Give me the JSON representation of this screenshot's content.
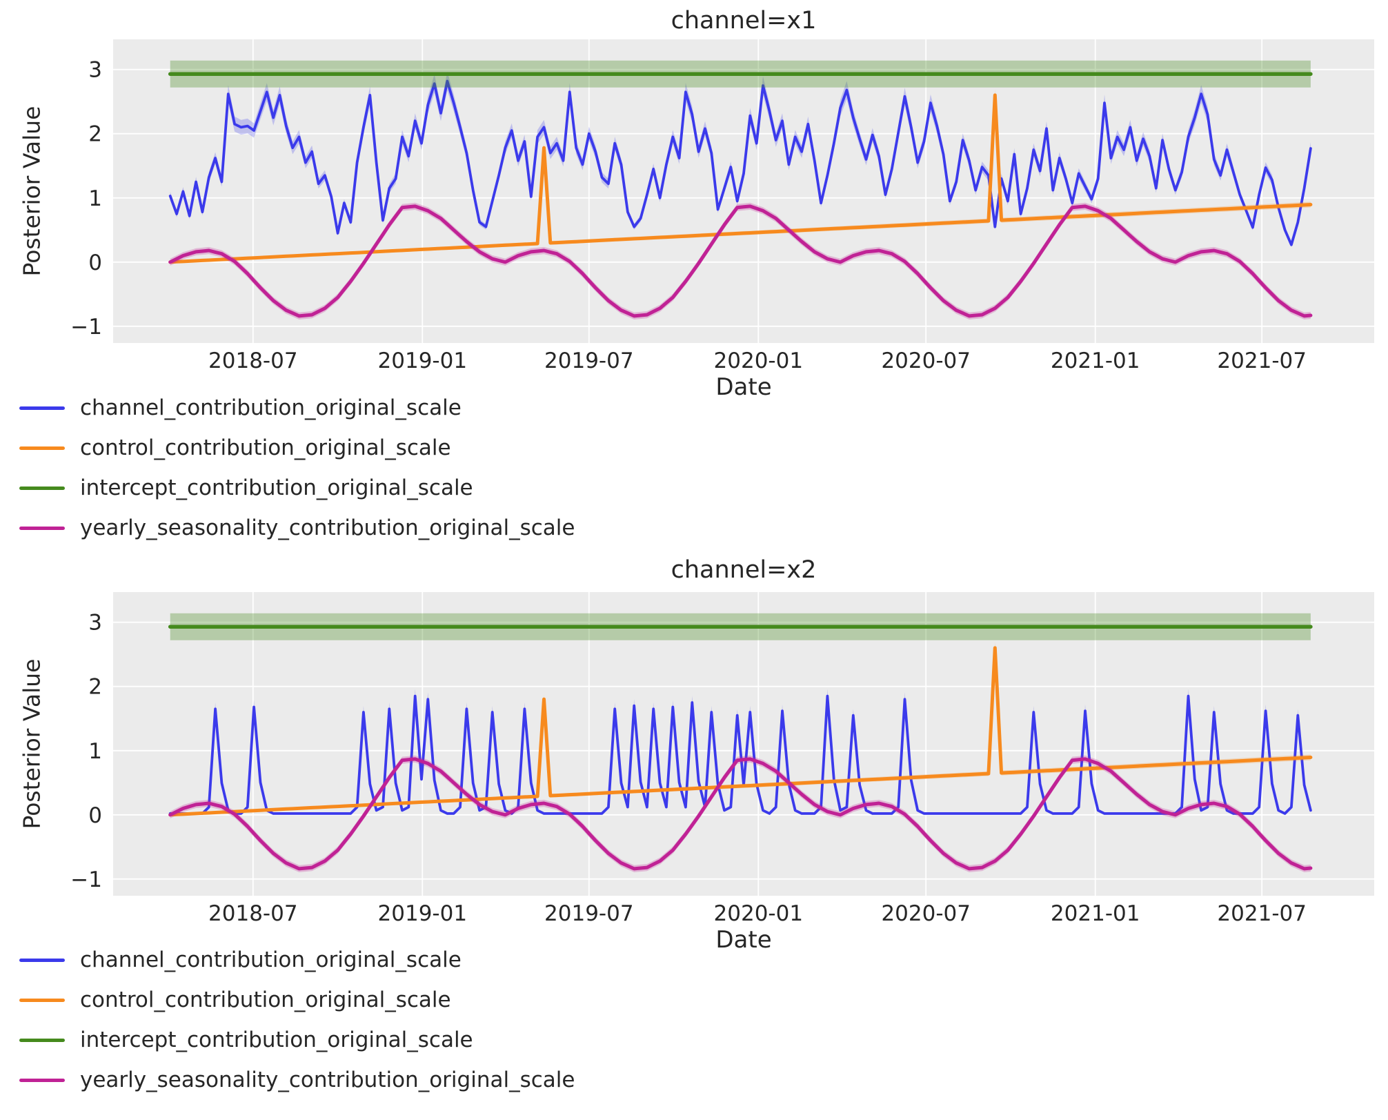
{
  "figure": {
    "subplots": [
      {
        "title": "channel=x1",
        "xlabel": "Date",
        "ylabel": "Posterior Value"
      },
      {
        "title": "channel=x2",
        "xlabel": "Date",
        "ylabel": "Posterior Value"
      }
    ],
    "legend_labels": [
      "channel_contribution_original_scale",
      "control_contribution_original_scale",
      "intercept_contribution_original_scale",
      "yearly_seasonality_contribution_original_scale"
    ]
  },
  "palette": {
    "channel": "#3b3aeb",
    "control": "#f78a1e",
    "intercept": "#458a1d",
    "seasonality": "#c02295",
    "axes_background": "#ebebeb",
    "grid": "#ffffff",
    "text": "#262626",
    "figure_background": "#ffffff"
  },
  "axes": {
    "xticklabels": [
      "2018-07",
      "2019-01",
      "2019-07",
      "2020-01",
      "2020-07",
      "2021-01",
      "2021-07"
    ],
    "xtick_dates": [
      "2018-07-01",
      "2019-01-01",
      "2019-07-01",
      "2020-01-01",
      "2020-07-01",
      "2021-01-01",
      "2021-07-01"
    ],
    "yticks": [
      3,
      2,
      1,
      0,
      -1
    ],
    "yticklabels": [
      "3",
      "2",
      "1",
      "0",
      "−1"
    ],
    "ylim": [
      -1.26,
      3.47
    ],
    "date_start": "2018-04-02",
    "date_end": "2021-08-30",
    "step_days": 7,
    "x_margin_days": 62,
    "grid": "on",
    "legend_position": "below-left"
  },
  "chart_data": [
    {
      "subplot": "channel=x1",
      "type": "line",
      "x_start": "2018-04-02",
      "x_step_days": 7,
      "n_weeks": 178,
      "series": [
        {
          "name": "channel_contribution_original_scale",
          "color_key": "channel",
          "kind": "weekly_values",
          "values": [
            1.03,
            0.75,
            1.1,
            0.72,
            1.25,
            0.78,
            1.32,
            1.62,
            1.25,
            2.62,
            2.15,
            2.1,
            2.12,
            2.05,
            2.35,
            2.65,
            2.25,
            2.6,
            2.12,
            1.78,
            1.95,
            1.55,
            1.72,
            1.22,
            1.35,
            1.02,
            0.45,
            0.92,
            0.62,
            1.55,
            2.1,
            2.6,
            1.55,
            0.65,
            1.15,
            1.3,
            1.95,
            1.65,
            2.2,
            1.85,
            2.45,
            2.78,
            2.32,
            2.82,
            2.48,
            2.1,
            1.7,
            1.12,
            0.62,
            0.55,
            0.95,
            1.35,
            1.78,
            2.05,
            1.58,
            1.88,
            1.02,
            1.95,
            2.1,
            1.7,
            1.85,
            1.58,
            2.65,
            1.78,
            1.52,
            2.0,
            1.72,
            1.32,
            1.22,
            1.85,
            1.52,
            0.78,
            0.55,
            0.68,
            1.05,
            1.45,
            1.0,
            1.52,
            1.95,
            1.62,
            2.65,
            2.3,
            1.72,
            2.08,
            1.7,
            0.82,
            1.15,
            1.48,
            0.95,
            1.38,
            2.28,
            1.85,
            2.75,
            2.35,
            1.9,
            2.2,
            1.52,
            1.95,
            1.72,
            2.15,
            1.58,
            0.92,
            1.35,
            1.85,
            2.4,
            2.68,
            2.25,
            1.92,
            1.6,
            1.98,
            1.65,
            1.05,
            1.45,
            2.02,
            2.58,
            2.1,
            1.55,
            1.88,
            2.48,
            2.12,
            1.68,
            0.95,
            1.25,
            1.9,
            1.58,
            1.12,
            1.48,
            1.35,
            0.55,
            1.3,
            0.95,
            1.68,
            0.75,
            1.15,
            1.75,
            1.42,
            2.08,
            1.12,
            1.62,
            1.3,
            0.92,
            1.38,
            1.18,
            0.98,
            1.3,
            2.48,
            1.62,
            1.95,
            1.75,
            2.1,
            1.58,
            1.92,
            1.65,
            1.15,
            1.9,
            1.45,
            1.12,
            1.4,
            1.95,
            2.25,
            2.62,
            2.3,
            1.6,
            1.35,
            1.75,
            1.4,
            1.05,
            0.8,
            0.54,
            1.05,
            1.47,
            1.28,
            0.85,
            0.5,
            0.27,
            0.62,
            1.15,
            1.77
          ]
        },
        {
          "name": "control_contribution_original_scale",
          "color_key": "control",
          "kind": "trend_with_spikes",
          "start_value": 0.0,
          "end_value": 0.9,
          "spikes": [
            [
              "2019-05-13",
              1.78
            ],
            [
              "2020-09-14",
              2.6
            ]
          ]
        },
        {
          "name": "intercept_contribution_original_scale",
          "color_key": "intercept",
          "kind": "constant",
          "value": 2.93,
          "band": [
            2.72,
            3.14
          ]
        },
        {
          "name": "yearly_seasonality_contribution_original_scale",
          "color_key": "seasonality",
          "kind": "seasonal",
          "profile_step_days": 14,
          "profile": [
            0.0,
            0.1,
            0.16,
            0.18,
            0.13,
            0.01,
            -0.18,
            -0.4,
            -0.6,
            -0.75,
            -0.84,
            -0.82,
            -0.72,
            -0.55,
            -0.3,
            -0.02,
            0.28,
            0.58,
            0.85,
            0.87,
            0.8,
            0.68,
            0.5,
            0.32,
            0.16,
            0.05
          ]
        }
      ]
    },
    {
      "subplot": "channel=x2",
      "type": "line",
      "x_start": "2018-04-02",
      "x_step_days": 7,
      "n_weeks": 178,
      "series": [
        {
          "name": "channel_contribution_original_scale",
          "color_key": "channel",
          "kind": "baseline_spikes",
          "baseline": 0.02,
          "spikes": [
            [
              "2018-05-21",
              1.65
            ],
            [
              "2018-07-02",
              1.68
            ],
            [
              "2018-10-29",
              1.6
            ],
            [
              "2018-11-26",
              1.65
            ],
            [
              "2018-12-24",
              1.85
            ],
            [
              "2019-01-07",
              1.8
            ],
            [
              "2019-02-18",
              1.65
            ],
            [
              "2019-03-18",
              1.6
            ],
            [
              "2019-04-22",
              1.65
            ],
            [
              "2019-07-29",
              1.65
            ],
            [
              "2019-08-19",
              1.7
            ],
            [
              "2019-09-09",
              1.65
            ],
            [
              "2019-09-30",
              1.68
            ],
            [
              "2019-10-21",
              1.75
            ],
            [
              "2019-11-11",
              1.6
            ],
            [
              "2019-12-09",
              1.55
            ],
            [
              "2019-12-23",
              1.6
            ],
            [
              "2020-01-27",
              1.62
            ],
            [
              "2020-03-16",
              1.85
            ],
            [
              "2020-04-13",
              1.55
            ],
            [
              "2020-06-08",
              1.8
            ],
            [
              "2020-10-26",
              1.6
            ],
            [
              "2020-12-21",
              1.62
            ],
            [
              "2021-04-12",
              1.85
            ],
            [
              "2021-05-10",
              1.6
            ],
            [
              "2021-07-05",
              1.62
            ],
            [
              "2021-08-09",
              1.55
            ]
          ]
        },
        {
          "name": "control_contribution_original_scale",
          "color_key": "control",
          "kind": "trend_with_spikes",
          "start_value": 0.0,
          "end_value": 0.9,
          "spikes": [
            [
              "2019-05-13",
              1.8
            ],
            [
              "2020-09-14",
              2.6
            ]
          ]
        },
        {
          "name": "intercept_contribution_original_scale",
          "color_key": "intercept",
          "kind": "constant",
          "value": 2.93,
          "band": [
            2.72,
            3.14
          ]
        },
        {
          "name": "yearly_seasonality_contribution_original_scale",
          "color_key": "seasonality",
          "kind": "seasonal",
          "profile_step_days": 14,
          "profile": [
            0.0,
            0.1,
            0.16,
            0.18,
            0.13,
            0.01,
            -0.18,
            -0.4,
            -0.6,
            -0.75,
            -0.84,
            -0.82,
            -0.72,
            -0.55,
            -0.3,
            -0.02,
            0.28,
            0.58,
            0.85,
            0.87,
            0.8,
            0.68,
            0.5,
            0.32,
            0.16,
            0.05
          ]
        }
      ]
    }
  ]
}
